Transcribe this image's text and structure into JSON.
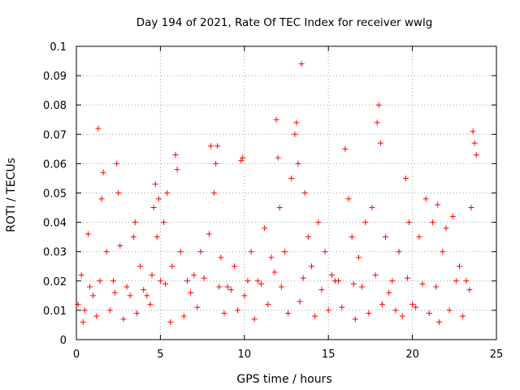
{
  "chart_data": {
    "type": "scatter",
    "title": "Day 194 of 2021, Rate Of TEC Index for receiver wwlg",
    "xlabel": "GPS time / hours",
    "ylabel": "ROTI / TECUs",
    "xlim": [
      0,
      25
    ],
    "ylim": [
      0,
      0.1
    ],
    "x_ticks": [
      0,
      5,
      10,
      15,
      20,
      25
    ],
    "x_tick_labels": [
      "0",
      "5",
      "10",
      "15",
      "20",
      "25"
    ],
    "y_ticks": [
      0,
      0.01,
      0.02,
      0.03,
      0.04,
      0.05,
      0.06,
      0.07,
      0.08,
      0.09,
      0.1
    ],
    "y_tick_labels": [
      "0",
      "0.01",
      "0.02",
      "0.03",
      "0.04",
      "0.05",
      "0.06",
      "0.07",
      "0.08",
      "0.09",
      "0.1"
    ],
    "grid": true,
    "marker": "+",
    "series_color": "#ff0000",
    "series": [
      {
        "name": "ROTI",
        "x": [
          0.1,
          0.3,
          0.5,
          0.7,
          1.0,
          1.3,
          1.5,
          1.6,
          1.8,
          2.2,
          2.4,
          2.5,
          2.6,
          3.0,
          3.4,
          3.5,
          3.8,
          4.2,
          4.6,
          4.7,
          4.8,
          4.9,
          5.0,
          5.2,
          5.4,
          5.7,
          5.9,
          6.0,
          6.2,
          6.6,
          7.0,
          7.4,
          7.9,
          8.0,
          8.2,
          8.3,
          8.4,
          8.6,
          9.0,
          9.4,
          9.8,
          9.9,
          10.0,
          10.4,
          10.8,
          11.2,
          11.6,
          11.9,
          12.0,
          12.1,
          12.4,
          12.8,
          13.0,
          13.1,
          13.2,
          13.4,
          13.6,
          13.8,
          14.0,
          14.4,
          14.8,
          15.2,
          15.6,
          16.0,
          16.2,
          16.4,
          16.8,
          17.2,
          17.6,
          17.9,
          18.0,
          18.1,
          18.4,
          18.8,
          19.2,
          19.6,
          19.8,
          20.0,
          20.4,
          20.8,
          21.2,
          21.5,
          21.8,
          22.0,
          22.4,
          22.8,
          23.2,
          23.5,
          23.6,
          23.7,
          23.8,
          0.4,
          1.2,
          2.0,
          2.8,
          3.6,
          4.4,
          5.6,
          6.4,
          7.2,
          8.8,
          9.6,
          10.6,
          11.4,
          12.6,
          13.3,
          14.2,
          15.0,
          15.8,
          16.6,
          17.4,
          18.2,
          19.0,
          19.4,
          20.2,
          21.0,
          21.6,
          22.2,
          23.0,
          0.8,
          1.4,
          2.3,
          3.2,
          4.0,
          4.5,
          5.3,
          6.8,
          7.6,
          8.5,
          9.2,
          10.2,
          11.0,
          11.8,
          12.2,
          13.5,
          14.6,
          15.4,
          16.5,
          17.0,
          17.8,
          18.6,
          19.7,
          20.6,
          21.4,
          22.6,
          23.4
        ],
        "y": [
          0.012,
          0.022,
          0.01,
          0.036,
          0.015,
          0.072,
          0.048,
          0.057,
          0.03,
          0.02,
          0.06,
          0.05,
          0.032,
          0.018,
          0.035,
          0.04,
          0.025,
          0.015,
          0.045,
          0.053,
          0.035,
          0.048,
          0.02,
          0.04,
          0.05,
          0.025,
          0.063,
          0.058,
          0.03,
          0.02,
          0.022,
          0.03,
          0.036,
          0.066,
          0.05,
          0.06,
          0.066,
          0.028,
          0.018,
          0.025,
          0.061,
          0.062,
          0.015,
          0.03,
          0.02,
          0.038,
          0.028,
          0.075,
          0.062,
          0.045,
          0.03,
          0.055,
          0.07,
          0.074,
          0.06,
          0.094,
          0.05,
          0.035,
          0.025,
          0.04,
          0.03,
          0.022,
          0.02,
          0.065,
          0.048,
          0.035,
          0.028,
          0.04,
          0.045,
          0.074,
          0.08,
          0.067,
          0.035,
          0.02,
          0.03,
          0.055,
          0.04,
          0.012,
          0.035,
          0.048,
          0.04,
          0.046,
          0.03,
          0.038,
          0.042,
          0.025,
          0.02,
          0.045,
          0.071,
          0.067,
          0.063,
          0.006,
          0.008,
          0.01,
          0.007,
          0.009,
          0.012,
          0.006,
          0.008,
          0.011,
          0.009,
          0.01,
          0.007,
          0.012,
          0.009,
          0.013,
          0.008,
          0.01,
          0.011,
          0.007,
          0.009,
          0.012,
          0.01,
          0.008,
          0.011,
          0.009,
          0.006,
          0.01,
          0.008,
          0.018,
          0.02,
          0.016,
          0.015,
          0.017,
          0.022,
          0.019,
          0.016,
          0.021,
          0.018,
          0.017,
          0.02,
          0.019,
          0.023,
          0.018,
          0.021,
          0.017,
          0.02,
          0.019,
          0.018,
          0.022,
          0.016,
          0.021,
          0.019,
          0.018,
          0.02,
          0.017
        ]
      }
    ]
  }
}
